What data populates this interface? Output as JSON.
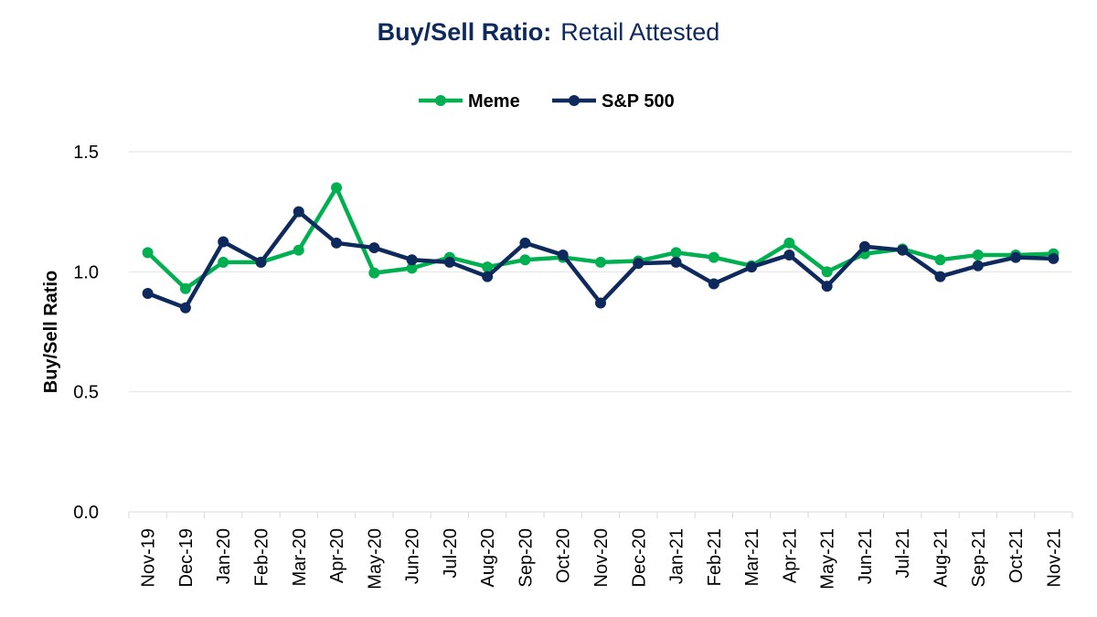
{
  "chart_data": {
    "type": "line",
    "title_bold": "Buy/Sell Ratio:",
    "title_regular": "Retail Attested",
    "xlabel": "",
    "ylabel": "Buy/Sell Ratio",
    "ylim": [
      0,
      1.5
    ],
    "yticks": [
      "0.0",
      "0.5",
      "1.0",
      "1.5"
    ],
    "ytick_values": [
      0,
      0.5,
      1.0,
      1.5
    ],
    "grid": true,
    "legend_position": "top-center",
    "categories": [
      "Nov-19",
      "Dec-19",
      "Jan-20",
      "Feb-20",
      "Mar-20",
      "Apr-20",
      "May-20",
      "Jun-20",
      "Jul-20",
      "Aug-20",
      "Sep-20",
      "Oct-20",
      "Nov-20",
      "Dec-20",
      "Jan-21",
      "Feb-21",
      "Mar-21",
      "Apr-21",
      "May-21",
      "Jun-21",
      "Jul-21",
      "Aug-21",
      "Sep-21",
      "Oct-21",
      "Nov-21"
    ],
    "series": [
      {
        "name": "Meme",
        "color": "#00b050",
        "values": [
          1.08,
          0.93,
          1.04,
          1.04,
          1.09,
          1.35,
          0.995,
          1.015,
          1.06,
          1.02,
          1.05,
          1.06,
          1.04,
          1.045,
          1.08,
          1.06,
          1.025,
          1.12,
          1.0,
          1.075,
          1.095,
          1.05,
          1.07,
          1.07,
          1.075
        ]
      },
      {
        "name": "S&P 500",
        "color": "#0e2a5c",
        "values": [
          0.91,
          0.85,
          1.125,
          1.04,
          1.25,
          1.12,
          1.1,
          1.05,
          1.04,
          0.98,
          1.12,
          1.07,
          0.87,
          1.035,
          1.04,
          0.95,
          1.02,
          1.07,
          0.94,
          1.105,
          1.09,
          0.98,
          1.025,
          1.06,
          1.055
        ]
      }
    ]
  }
}
